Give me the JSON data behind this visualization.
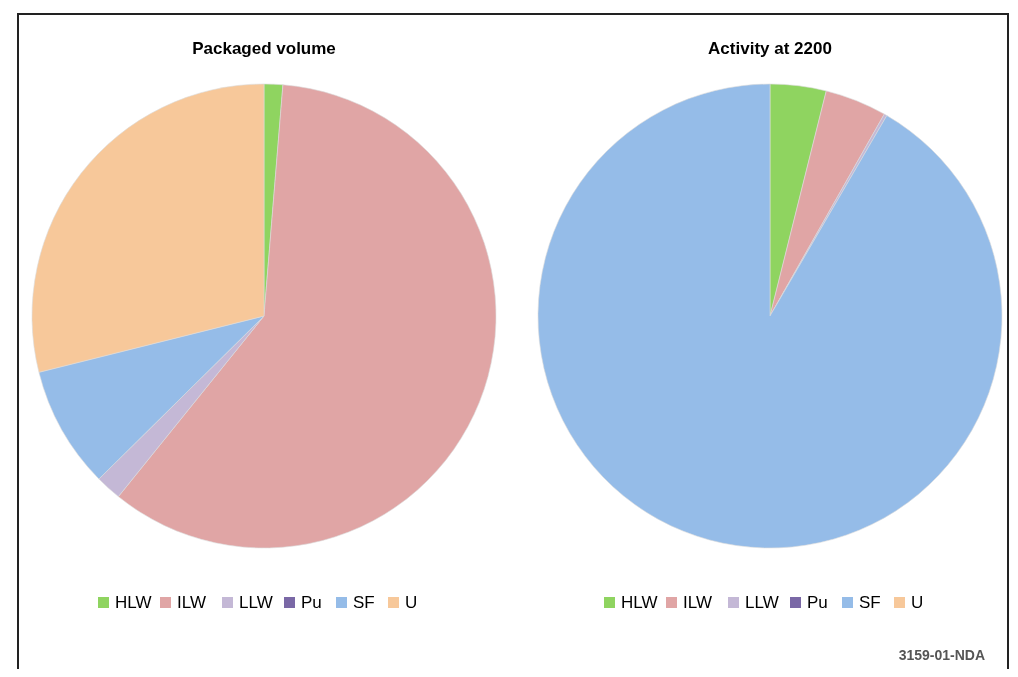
{
  "chart_data": [
    {
      "type": "pie",
      "title": "Packaged volume",
      "categories": [
        "HLW",
        "ILW",
        "LLW",
        "Pu",
        "SF",
        "U"
      ],
      "values": [
        1.3,
        59.5,
        1.8,
        0,
        8.5,
        28.9
      ],
      "colors": [
        "#8fd460",
        "#e0a5a5",
        "#c4b8d6",
        "#7a68a6",
        "#95bce8",
        "#f7c89a"
      ],
      "legend": "bottom"
    },
    {
      "type": "pie",
      "title": "Activity at 2200",
      "categories": [
        "HLW",
        "ILW",
        "LLW",
        "Pu",
        "SF",
        "U"
      ],
      "values": [
        3.9,
        4.3,
        0.2,
        0,
        91.6,
        0
      ],
      "colors": [
        "#8fd460",
        "#e0a5a5",
        "#c4b8d6",
        "#7a68a6",
        "#95bce8",
        "#f7c89a"
      ],
      "legend": "bottom",
      "annotations": [
        "3159-01-NDA"
      ]
    }
  ]
}
